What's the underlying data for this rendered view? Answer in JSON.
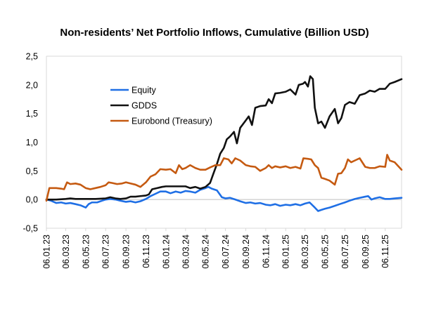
{
  "chart_data": {
    "type": "line",
    "title": "Non-residents’ Net Portfolio Inflows, Cumulative (Billion USD)",
    "xlabel": "",
    "ylabel": "",
    "ylim": [
      -0.5,
      2.5
    ],
    "yticks": [
      -0.5,
      0.0,
      0.5,
      1.0,
      1.5,
      2.0,
      2.5
    ],
    "ytick_labels": [
      "-0,5",
      "0,0",
      "0,5",
      "1,0",
      "1,5",
      "2,0",
      "2,5"
    ],
    "x_start": "2023-01-06",
    "x_end": "2025-12-26",
    "xticks": [
      "2023-01-06",
      "2023-03-06",
      "2023-05-06",
      "2023-07-06",
      "2023-09-06",
      "2023-11-06",
      "2024-01-06",
      "2024-03-06",
      "2024-05-06",
      "2024-07-06",
      "2024-09-06",
      "2024-11-06",
      "2025-01-06",
      "2025-03-06",
      "2025-05-06",
      "2025-07-06",
      "2025-09-06",
      "2025-11-06"
    ],
    "xtick_labels": [
      "06.01.23",
      "06.03.23",
      "06.05.23",
      "06.07.23",
      "06.09.23",
      "06.11.23",
      "06.01.24",
      "06.03.24",
      "06.05.24",
      "06.07.24",
      "06.09.24",
      "06.11.24",
      "06.01.25",
      "06.03.25",
      "06.05.25",
      "06.07.25",
      "06.09.25",
      "06.11.25"
    ],
    "grid": false,
    "legend_position": "upper-left",
    "series": [
      {
        "name": "Equity",
        "color": "#1f6fe5",
        "points": [
          [
            "2023-01-06",
            0.0
          ],
          [
            "2023-01-20",
            -0.02
          ],
          [
            "2023-02-05",
            -0.06
          ],
          [
            "2023-02-20",
            -0.05
          ],
          [
            "2023-03-06",
            -0.07
          ],
          [
            "2023-03-20",
            -0.06
          ],
          [
            "2023-04-05",
            -0.08
          ],
          [
            "2023-04-20",
            -0.1
          ],
          [
            "2023-05-06",
            -0.14
          ],
          [
            "2023-05-15",
            -0.08
          ],
          [
            "2023-05-25",
            -0.05
          ],
          [
            "2023-06-10",
            -0.05
          ],
          [
            "2023-06-25",
            -0.02
          ],
          [
            "2023-07-06",
            0.0
          ],
          [
            "2023-07-20",
            0.01
          ],
          [
            "2023-08-05",
            0.0
          ],
          [
            "2023-08-20",
            -0.02
          ],
          [
            "2023-09-06",
            -0.04
          ],
          [
            "2023-09-20",
            -0.03
          ],
          [
            "2023-10-05",
            -0.05
          ],
          [
            "2023-10-20",
            -0.03
          ],
          [
            "2023-11-06",
            0.01
          ],
          [
            "2023-11-20",
            0.06
          ],
          [
            "2023-12-05",
            0.1
          ],
          [
            "2023-12-20",
            0.14
          ],
          [
            "2024-01-06",
            0.14
          ],
          [
            "2024-01-20",
            0.11
          ],
          [
            "2024-02-05",
            0.14
          ],
          [
            "2024-02-20",
            0.12
          ],
          [
            "2024-03-06",
            0.15
          ],
          [
            "2024-03-20",
            0.14
          ],
          [
            "2024-04-05",
            0.12
          ],
          [
            "2024-04-20",
            0.17
          ],
          [
            "2024-05-06",
            0.2
          ],
          [
            "2024-05-15",
            0.22
          ],
          [
            "2024-05-25",
            0.19
          ],
          [
            "2024-06-10",
            0.16
          ],
          [
            "2024-06-25",
            0.04
          ],
          [
            "2024-07-06",
            0.02
          ],
          [
            "2024-07-20",
            0.03
          ],
          [
            "2024-08-05",
            0.0
          ],
          [
            "2024-08-20",
            -0.03
          ],
          [
            "2024-09-06",
            -0.06
          ],
          [
            "2024-09-20",
            -0.05
          ],
          [
            "2024-10-05",
            -0.07
          ],
          [
            "2024-10-20",
            -0.06
          ],
          [
            "2024-11-06",
            -0.09
          ],
          [
            "2024-11-20",
            -0.1
          ],
          [
            "2024-12-05",
            -0.08
          ],
          [
            "2024-12-20",
            -0.11
          ],
          [
            "2025-01-06",
            -0.09
          ],
          [
            "2025-01-20",
            -0.1
          ],
          [
            "2025-02-05",
            -0.08
          ],
          [
            "2025-02-20",
            -0.1
          ],
          [
            "2025-03-06",
            -0.07
          ],
          [
            "2025-03-20",
            -0.05
          ],
          [
            "2025-04-05",
            -0.14
          ],
          [
            "2025-04-15",
            -0.2
          ],
          [
            "2025-04-25",
            -0.18
          ],
          [
            "2025-05-06",
            -0.16
          ],
          [
            "2025-05-20",
            -0.14
          ],
          [
            "2025-06-05",
            -0.11
          ],
          [
            "2025-06-20",
            -0.08
          ],
          [
            "2025-07-06",
            -0.05
          ],
          [
            "2025-07-20",
            -0.02
          ],
          [
            "2025-08-05",
            0.01
          ],
          [
            "2025-08-20",
            0.03
          ],
          [
            "2025-09-06",
            0.05
          ],
          [
            "2025-09-15",
            0.06
          ],
          [
            "2025-09-25",
            0.0
          ],
          [
            "2025-10-05",
            0.02
          ],
          [
            "2025-10-20",
            0.04
          ],
          [
            "2025-11-06",
            0.01
          ],
          [
            "2025-11-20",
            0.01
          ],
          [
            "2025-12-05",
            0.02
          ],
          [
            "2025-12-26",
            0.03
          ]
        ]
      },
      {
        "name": "GDDS",
        "color": "#111111",
        "points": [
          [
            "2023-01-06",
            0.0
          ],
          [
            "2023-02-05",
            0.0
          ],
          [
            "2023-03-06",
            0.01
          ],
          [
            "2023-03-20",
            0.02
          ],
          [
            "2023-04-05",
            0.01
          ],
          [
            "2023-05-06",
            0.01
          ],
          [
            "2023-06-05",
            0.01
          ],
          [
            "2023-07-06",
            0.02
          ],
          [
            "2023-07-20",
            0.04
          ],
          [
            "2023-08-05",
            0.02
          ],
          [
            "2023-08-20",
            0.01
          ],
          [
            "2023-09-06",
            0.02
          ],
          [
            "2023-09-20",
            0.05
          ],
          [
            "2023-10-05",
            0.05
          ],
          [
            "2023-10-20",
            0.06
          ],
          [
            "2023-11-06",
            0.07
          ],
          [
            "2023-11-15",
            0.09
          ],
          [
            "2023-11-25",
            0.18
          ],
          [
            "2023-12-10",
            0.2
          ],
          [
            "2023-12-25",
            0.22
          ],
          [
            "2024-01-06",
            0.23
          ],
          [
            "2024-02-05",
            0.23
          ],
          [
            "2024-03-06",
            0.23
          ],
          [
            "2024-03-20",
            0.2
          ],
          [
            "2024-04-05",
            0.22
          ],
          [
            "2024-04-20",
            0.19
          ],
          [
            "2024-05-06",
            0.22
          ],
          [
            "2024-05-20",
            0.29
          ],
          [
            "2024-05-30",
            0.45
          ],
          [
            "2024-06-10",
            0.62
          ],
          [
            "2024-06-20",
            0.8
          ],
          [
            "2024-07-01",
            0.9
          ],
          [
            "2024-07-10",
            1.05
          ],
          [
            "2024-07-20",
            1.1
          ],
          [
            "2024-08-01",
            1.18
          ],
          [
            "2024-08-10",
            0.98
          ],
          [
            "2024-08-20",
            1.25
          ],
          [
            "2024-09-06",
            1.38
          ],
          [
            "2024-09-15",
            1.45
          ],
          [
            "2024-09-25",
            1.3
          ],
          [
            "2024-10-05",
            1.6
          ],
          [
            "2024-10-20",
            1.63
          ],
          [
            "2024-11-06",
            1.64
          ],
          [
            "2024-11-15",
            1.75
          ],
          [
            "2024-11-25",
            1.68
          ],
          [
            "2024-12-05",
            1.85
          ],
          [
            "2024-12-20",
            1.86
          ],
          [
            "2025-01-06",
            1.88
          ],
          [
            "2025-01-20",
            1.92
          ],
          [
            "2025-02-05",
            1.83
          ],
          [
            "2025-02-15",
            2.0
          ],
          [
            "2025-02-28",
            2.02
          ],
          [
            "2025-03-06",
            2.05
          ],
          [
            "2025-03-15",
            1.97
          ],
          [
            "2025-03-22",
            2.15
          ],
          [
            "2025-03-30",
            2.1
          ],
          [
            "2025-04-05",
            1.6
          ],
          [
            "2025-04-15",
            1.33
          ],
          [
            "2025-04-25",
            1.36
          ],
          [
            "2025-05-06",
            1.25
          ],
          [
            "2025-05-20",
            1.45
          ],
          [
            "2025-06-05",
            1.58
          ],
          [
            "2025-06-15",
            1.33
          ],
          [
            "2025-06-25",
            1.42
          ],
          [
            "2025-07-06",
            1.65
          ],
          [
            "2025-07-20",
            1.7
          ],
          [
            "2025-08-05",
            1.67
          ],
          [
            "2025-08-20",
            1.82
          ],
          [
            "2025-09-06",
            1.85
          ],
          [
            "2025-09-20",
            1.9
          ],
          [
            "2025-10-05",
            1.88
          ],
          [
            "2025-10-20",
            1.93
          ],
          [
            "2025-11-06",
            1.93
          ],
          [
            "2025-11-20",
            2.02
          ],
          [
            "2025-12-05",
            2.05
          ],
          [
            "2025-12-26",
            2.1
          ]
        ]
      },
      {
        "name": "Eurobond (Treasury)",
        "color": "#c55a11",
        "points": [
          [
            "2023-01-06",
            -0.02
          ],
          [
            "2023-01-15",
            0.2
          ],
          [
            "2023-02-05",
            0.2
          ],
          [
            "2023-02-20",
            0.19
          ],
          [
            "2023-03-01",
            0.18
          ],
          [
            "2023-03-10",
            0.3
          ],
          [
            "2023-03-20",
            0.27
          ],
          [
            "2023-04-05",
            0.28
          ],
          [
            "2023-04-20",
            0.26
          ],
          [
            "2023-05-06",
            0.2
          ],
          [
            "2023-05-20",
            0.18
          ],
          [
            "2023-06-05",
            0.2
          ],
          [
            "2023-06-20",
            0.22
          ],
          [
            "2023-07-06",
            0.25
          ],
          [
            "2023-07-15",
            0.3
          ],
          [
            "2023-07-25",
            0.29
          ],
          [
            "2023-08-10",
            0.27
          ],
          [
            "2023-08-25",
            0.28
          ],
          [
            "2023-09-06",
            0.3
          ],
          [
            "2023-09-20",
            0.28
          ],
          [
            "2023-10-05",
            0.26
          ],
          [
            "2023-10-20",
            0.22
          ],
          [
            "2023-11-06",
            0.3
          ],
          [
            "2023-11-20",
            0.4
          ],
          [
            "2023-12-05",
            0.44
          ],
          [
            "2023-12-20",
            0.53
          ],
          [
            "2024-01-06",
            0.52
          ],
          [
            "2024-01-20",
            0.53
          ],
          [
            "2024-02-05",
            0.46
          ],
          [
            "2024-02-15",
            0.6
          ],
          [
            "2024-02-25",
            0.53
          ],
          [
            "2024-03-06",
            0.55
          ],
          [
            "2024-03-20",
            0.6
          ],
          [
            "2024-04-05",
            0.55
          ],
          [
            "2024-04-20",
            0.52
          ],
          [
            "2024-05-06",
            0.52
          ],
          [
            "2024-05-20",
            0.56
          ],
          [
            "2024-06-05",
            0.6
          ],
          [
            "2024-06-20",
            0.6
          ],
          [
            "2024-07-01",
            0.72
          ],
          [
            "2024-07-15",
            0.7
          ],
          [
            "2024-07-25",
            0.63
          ],
          [
            "2024-08-05",
            0.72
          ],
          [
            "2024-08-20",
            0.68
          ],
          [
            "2024-09-06",
            0.6
          ],
          [
            "2024-09-20",
            0.58
          ],
          [
            "2024-10-05",
            0.57
          ],
          [
            "2024-10-20",
            0.5
          ],
          [
            "2024-11-06",
            0.55
          ],
          [
            "2024-11-15",
            0.6
          ],
          [
            "2024-11-25",
            0.55
          ],
          [
            "2024-12-05",
            0.58
          ],
          [
            "2024-12-20",
            0.56
          ],
          [
            "2025-01-06",
            0.58
          ],
          [
            "2025-01-20",
            0.55
          ],
          [
            "2025-02-05",
            0.57
          ],
          [
            "2025-02-20",
            0.54
          ],
          [
            "2025-03-01",
            0.72
          ],
          [
            "2025-03-15",
            0.71
          ],
          [
            "2025-03-25",
            0.7
          ],
          [
            "2025-04-05",
            0.6
          ],
          [
            "2025-04-15",
            0.55
          ],
          [
            "2025-04-25",
            0.38
          ],
          [
            "2025-05-06",
            0.36
          ],
          [
            "2025-05-20",
            0.33
          ],
          [
            "2025-06-05",
            0.26
          ],
          [
            "2025-06-15",
            0.45
          ],
          [
            "2025-06-25",
            0.46
          ],
          [
            "2025-07-06",
            0.55
          ],
          [
            "2025-07-15",
            0.7
          ],
          [
            "2025-07-25",
            0.65
          ],
          [
            "2025-08-05",
            0.68
          ],
          [
            "2025-08-20",
            0.72
          ],
          [
            "2025-09-06",
            0.57
          ],
          [
            "2025-09-20",
            0.55
          ],
          [
            "2025-10-05",
            0.55
          ],
          [
            "2025-10-20",
            0.58
          ],
          [
            "2025-11-06",
            0.57
          ],
          [
            "2025-11-12",
            0.78
          ],
          [
            "2025-11-20",
            0.68
          ],
          [
            "2025-12-05",
            0.65
          ],
          [
            "2025-12-26",
            0.52
          ]
        ]
      }
    ]
  }
}
